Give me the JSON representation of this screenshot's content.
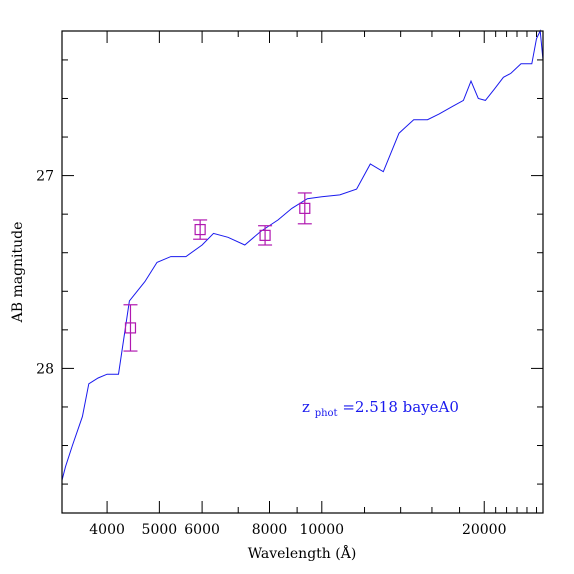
{
  "chart_data": {
    "type": "line",
    "xlabel": "Wavelength (Å)",
    "ylabel": "AB magnitude",
    "x_scale": "log",
    "xlim": [
      3300,
      25700
    ],
    "ylim": [
      28.75,
      26.25
    ],
    "x_ticks": [
      {
        "value": 4000,
        "label": "4000"
      },
      {
        "value": 5000,
        "label": "5000"
      },
      {
        "value": 6000,
        "label": "6000"
      },
      {
        "value": 8000,
        "label": "8000"
      },
      {
        "value": 10000,
        "label": "10000"
      },
      {
        "value": 20000,
        "label": "20000"
      }
    ],
    "y_ticks": [
      {
        "value": 27,
        "label": "27"
      },
      {
        "value": 28,
        "label": "28"
      }
    ],
    "colors": {
      "model": "#1a1aee",
      "photometry": "#b018b0",
      "axes": "#000000"
    },
    "annotation": {
      "z_base": "z",
      "z_sub": "phot",
      "rest": "=2.518 bayeA0"
    },
    "series": [
      {
        "kind": "model_sed",
        "points": [
          [
            3300,
            28.58
          ],
          [
            3350,
            28.51
          ],
          [
            3450,
            28.4
          ],
          [
            3600,
            28.25
          ],
          [
            3700,
            28.08
          ],
          [
            3850,
            28.05
          ],
          [
            4000,
            28.03
          ],
          [
            4200,
            28.03
          ],
          [
            4400,
            27.65
          ],
          [
            4700,
            27.55
          ],
          [
            4950,
            27.45
          ],
          [
            5250,
            27.42
          ],
          [
            5600,
            27.42
          ],
          [
            6000,
            27.36
          ],
          [
            6300,
            27.3
          ],
          [
            6700,
            27.32
          ],
          [
            7200,
            27.36
          ],
          [
            7700,
            27.29
          ],
          [
            8300,
            27.23
          ],
          [
            8800,
            27.17
          ],
          [
            9400,
            27.12
          ],
          [
            10000,
            27.11
          ],
          [
            10800,
            27.1
          ],
          [
            11600,
            27.07
          ],
          [
            12300,
            26.94
          ],
          [
            13000,
            26.98
          ],
          [
            13900,
            26.78
          ],
          [
            14800,
            26.71
          ],
          [
            15700,
            26.71
          ],
          [
            16500,
            26.68
          ],
          [
            17500,
            26.64
          ],
          [
            18300,
            26.61
          ],
          [
            18900,
            26.51
          ],
          [
            19500,
            26.6
          ],
          [
            20100,
            26.61
          ],
          [
            20900,
            26.55
          ],
          [
            21700,
            26.49
          ],
          [
            22400,
            26.47
          ],
          [
            23400,
            26.42
          ],
          [
            24500,
            26.42
          ],
          [
            25000,
            26.29
          ],
          [
            25400,
            26.24
          ],
          [
            25700,
            26.4
          ]
        ]
      },
      {
        "kind": "photometry",
        "points": [
          {
            "x": 4420,
            "y": 27.79,
            "yerr": 0.12
          },
          {
            "x": 5950,
            "y": 27.28,
            "yerr": 0.05
          },
          {
            "x": 7850,
            "y": 27.31,
            "yerr": 0.05
          },
          {
            "x": 9300,
            "y": 27.17,
            "yerr": 0.08
          }
        ]
      }
    ]
  }
}
